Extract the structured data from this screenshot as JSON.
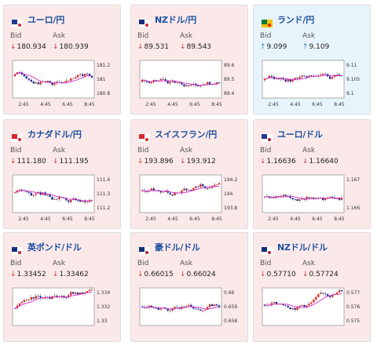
{
  "colors": {
    "down": "#d23a3a",
    "up": "#2a7ec8",
    "title": "#1b4f9c",
    "ma": "#d42dc9",
    "candle_up": "#d9332f",
    "candle_dn": "#1e2f9c"
  },
  "labels": {
    "bid": "Bid",
    "ask": "Ask"
  },
  "cards": [
    {
      "title": "ユーロ/円",
      "flag": "eu-jp-flag-icon",
      "dir": "dn",
      "bid": "180.934",
      "ask": "180.939",
      "arrow": "↓",
      "chart_data": {
        "type": "line",
        "x_ticks": [
          "2:45",
          "4:45",
          "6:45",
          "8:45"
        ],
        "y_ticks": [
          "181.2",
          "181",
          "180.8"
        ],
        "ylim": [
          180.75,
          181.25
        ]
      }
    },
    {
      "title": "NZドル/円",
      "flag": "nz-jp-flag-icon",
      "dir": "dn",
      "bid": "89.531",
      "ask": "89.543",
      "arrow": "↓",
      "chart_data": {
        "type": "line",
        "x_ticks": [
          "2:45",
          "4:45",
          "6:45",
          "8:45"
        ],
        "y_ticks": [
          "89.6",
          "89.5",
          "89.4"
        ],
        "ylim": [
          89.35,
          89.65
        ]
      }
    },
    {
      "title": "ランド/円",
      "flag": "za-jp-flag-icon",
      "dir": "up",
      "bid": "9.099",
      "ask": "9.109",
      "arrow": "↑",
      "chart_data": {
        "type": "line",
        "x_ticks": [
          "2:45",
          "4:45",
          "6:45",
          "8:45"
        ],
        "y_ticks": [
          "9.11",
          "9.105",
          "9.1"
        ],
        "ylim": [
          9.095,
          9.115
        ]
      }
    },
    {
      "title": "カナダドル/円",
      "flag": "ca-jp-flag-icon",
      "dir": "dn",
      "bid": "111.180",
      "ask": "111.195",
      "arrow": "↓",
      "chart_data": {
        "type": "line",
        "x_ticks": [
          "2:45",
          "4:45",
          "6:45",
          "8:45"
        ],
        "y_ticks": [
          "111.4",
          "111.3",
          "111.2"
        ],
        "ylim": [
          111.15,
          111.45
        ]
      }
    },
    {
      "title": "スイスフラン/円",
      "flag": "ch-jp-flag-icon",
      "dir": "dn",
      "bid": "193.896",
      "ask": "193.912",
      "arrow": "↓",
      "chart_data": {
        "type": "line",
        "x_ticks": [
          "2:45",
          "4:45",
          "6:45",
          "8:45"
        ],
        "y_ticks": [
          "194.2",
          "194",
          "193.8"
        ],
        "ylim": [
          193.7,
          194.3
        ]
      }
    },
    {
      "title": "ユーロ/ドル",
      "flag": "eu-us-flag-icon",
      "dir": "dn",
      "bid": "1.16636",
      "ask": "1.16640",
      "arrow": "↓",
      "chart_data": {
        "type": "line",
        "x_ticks": [
          "2:45",
          "4:45",
          "6:45",
          "8:45"
        ],
        "y_ticks": [
          "1.167",
          "1.166"
        ],
        "ylim": [
          1.1655,
          1.1675
        ]
      }
    },
    {
      "title": "英ポンド/ドル",
      "flag": "gb-us-flag-icon",
      "dir": "dn",
      "bid": "1.33452",
      "ask": "1.33462",
      "arrow": "↓",
      "chart_data": {
        "type": "line",
        "x_ticks": [],
        "y_ticks": [
          "1.334",
          "1.332",
          "1.33"
        ],
        "ylim": [
          1.3295,
          1.3355
        ]
      }
    },
    {
      "title": "豪ドル/ドル",
      "flag": "au-us-flag-icon",
      "dir": "dn",
      "bid": "0.66015",
      "ask": "0.66024",
      "arrow": "↓",
      "chart_data": {
        "type": "line",
        "x_ticks": [],
        "y_ticks": [
          "0.66",
          "0.659",
          "0.658"
        ],
        "ylim": [
          0.6575,
          0.6605
        ]
      }
    },
    {
      "title": "NZドル/ドル",
      "flag": "nz-us-flag-icon",
      "dir": "dn",
      "bid": "0.57710",
      "ask": "0.57724",
      "arrow": "↓",
      "chart_data": {
        "type": "line",
        "x_ticks": [],
        "y_ticks": [
          "0.577",
          "0.576",
          "0.575"
        ],
        "ylim": [
          0.5745,
          0.5775
        ]
      }
    }
  ]
}
